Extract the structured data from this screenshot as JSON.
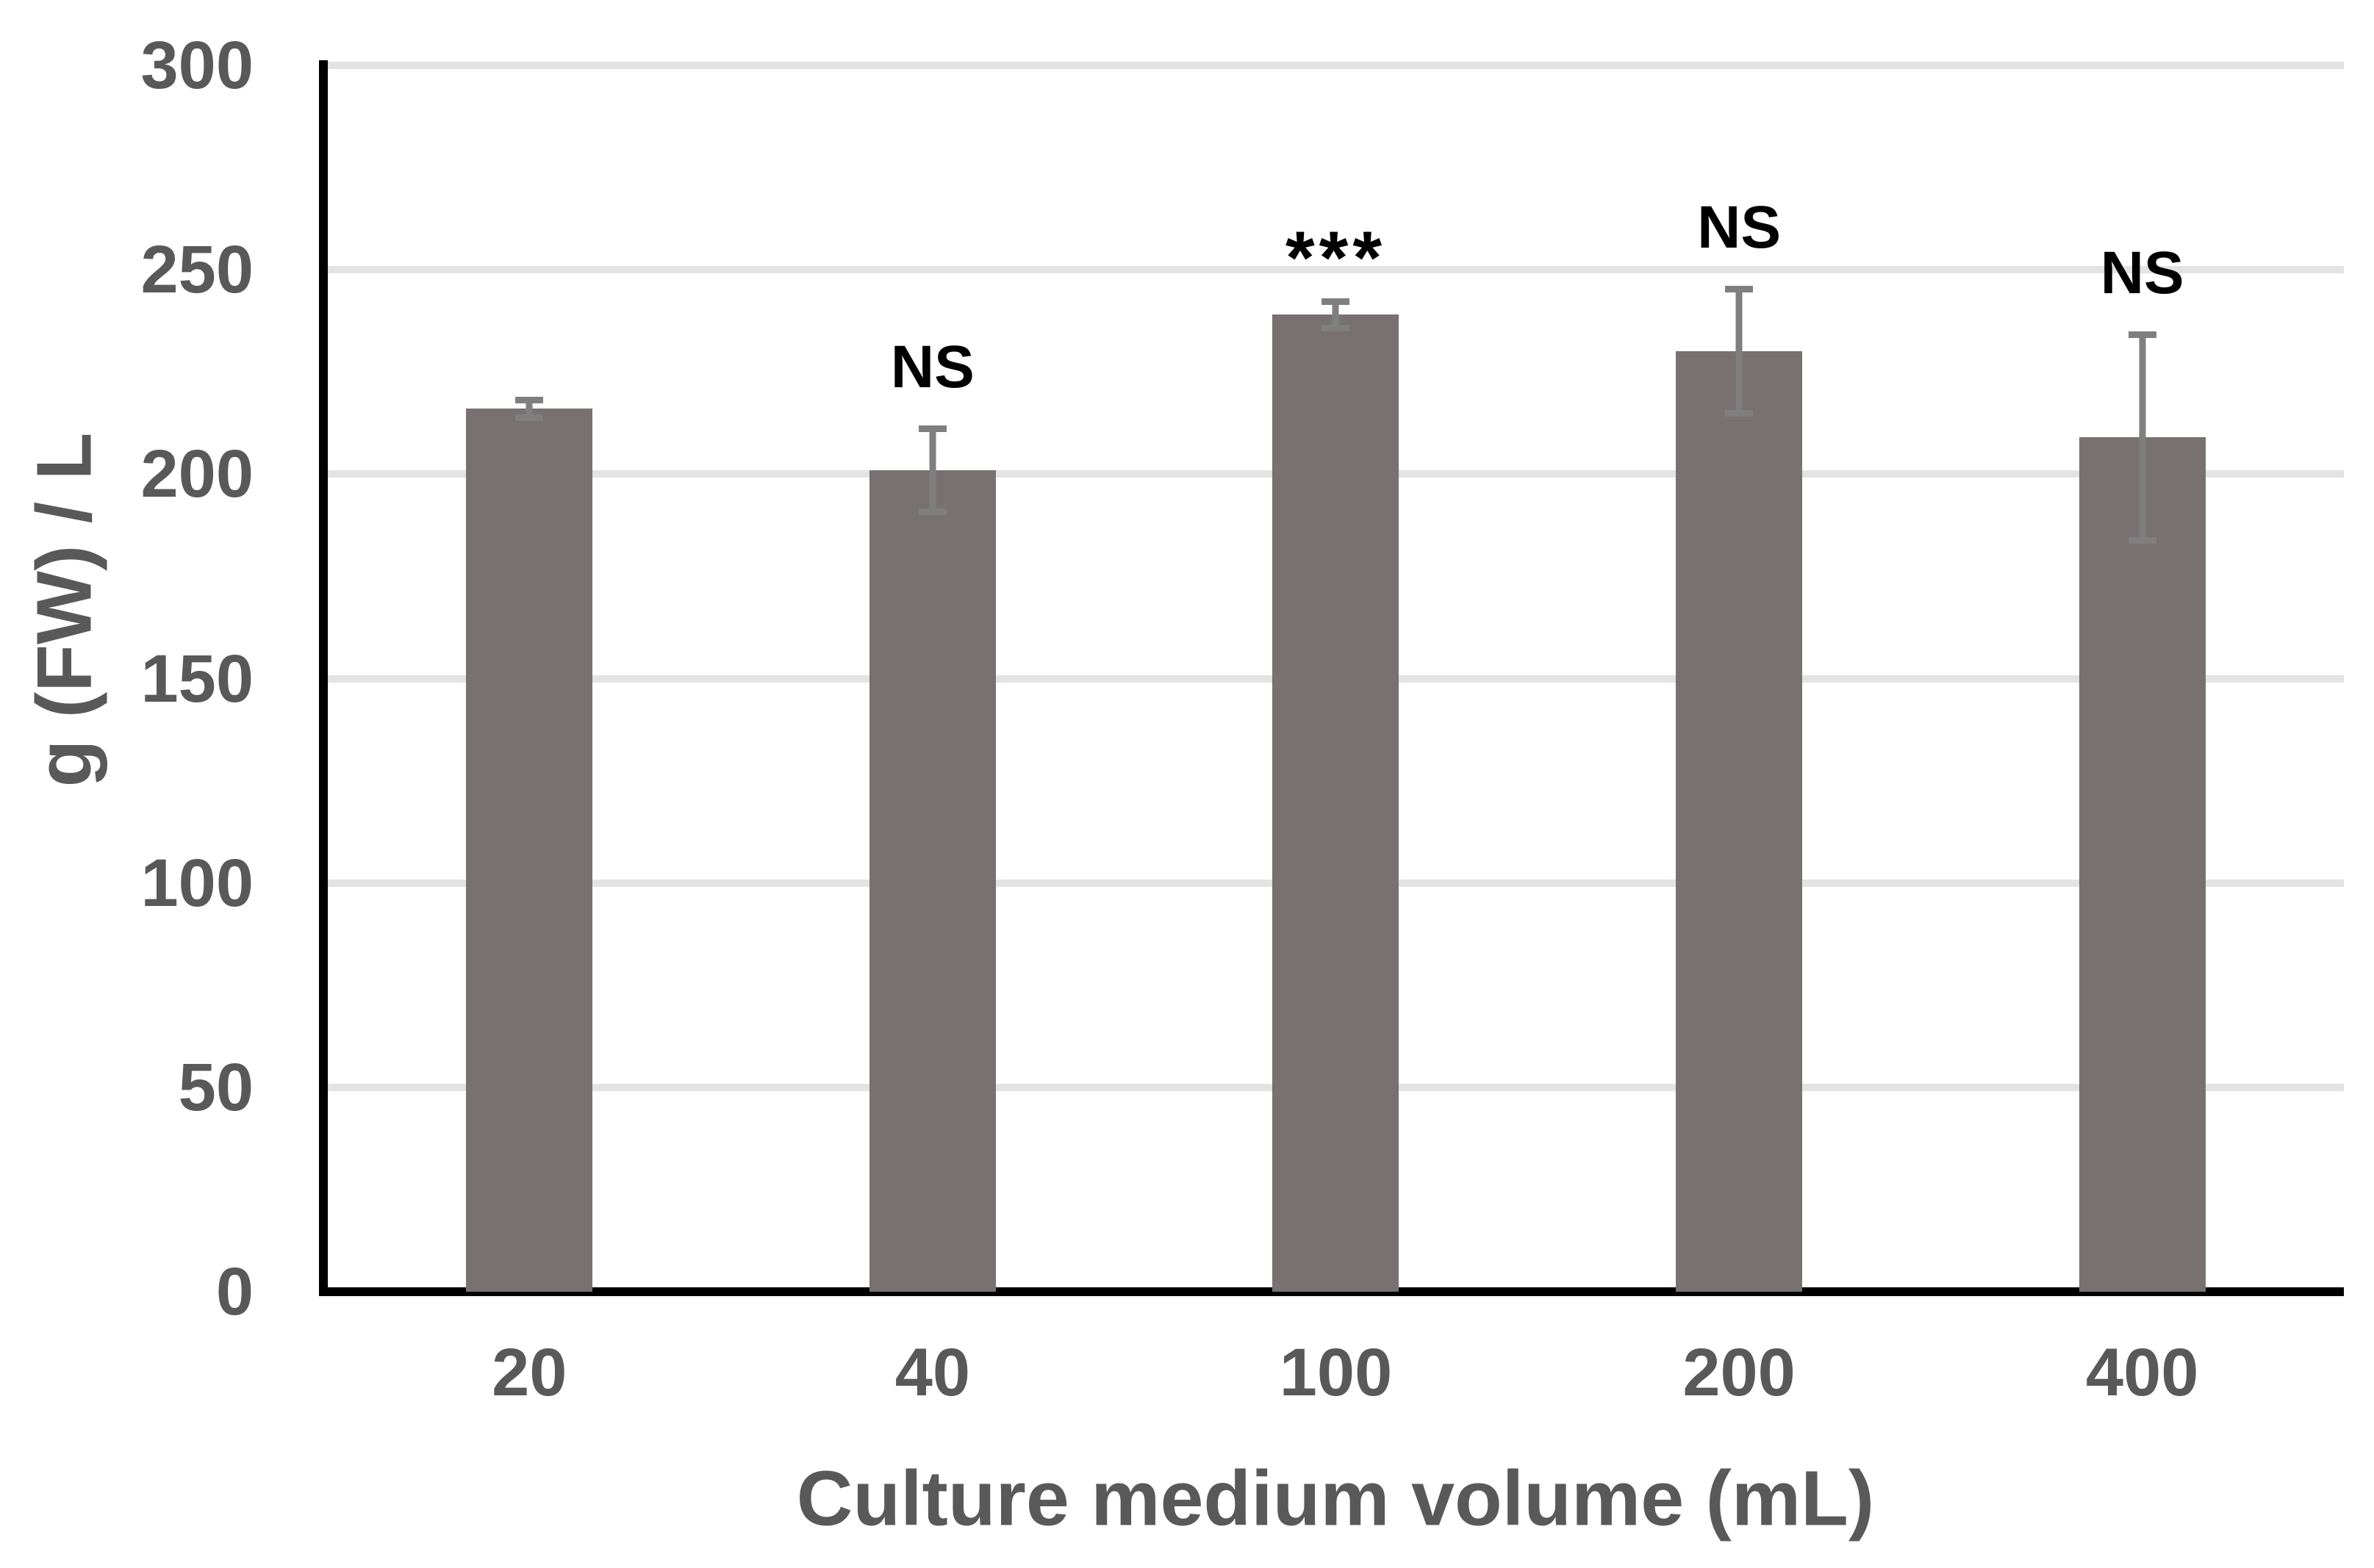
{
  "chart_data": {
    "type": "bar",
    "title": "",
    "xlabel": "Culture medium volume (mL)",
    "ylabel": "g (FW) / L",
    "categories": [
      "20",
      "40",
      "100",
      "200",
      "400"
    ],
    "values": [
      216,
      201,
      239,
      230,
      209
    ],
    "error_bars": [
      3,
      11,
      4,
      16,
      26
    ],
    "annotations": [
      "",
      "NS",
      "***",
      "NS",
      "NS"
    ],
    "ylim": [
      0,
      300
    ],
    "ytick_step": 50,
    "yticks": [
      300,
      250,
      200,
      150,
      100,
      50,
      0
    ],
    "grid": "horizontal",
    "legend": "none",
    "colors": {
      "bar": "#787071",
      "error_bar": "#7f7f7f",
      "gridline": "#e3e3e3",
      "axis": "#000000",
      "tick_text": "#595959",
      "annotation_text": "#000000"
    }
  }
}
